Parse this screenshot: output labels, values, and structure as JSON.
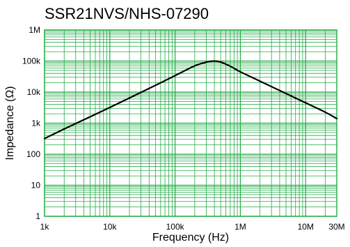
{
  "chart_data": {
    "type": "line",
    "title": "SSR21NVS/NHS-07290",
    "xlabel": "Frequency (Hz)",
    "ylabel": "Impedance (Ω)",
    "x_scale": "log",
    "y_scale": "log",
    "xlim": [
      1000,
      30000000
    ],
    "ylim": [
      1,
      1000000
    ],
    "x_ticks": [
      {
        "value": 1000,
        "label": "1k"
      },
      {
        "value": 10000,
        "label": "10k"
      },
      {
        "value": 100000,
        "label": "100k"
      },
      {
        "value": 1000000,
        "label": "1M"
      },
      {
        "value": 10000000,
        "label": "10M"
      },
      {
        "value": 30000000,
        "label": "30M"
      }
    ],
    "y_ticks": [
      {
        "value": 1,
        "label": "1"
      },
      {
        "value": 10,
        "label": "10"
      },
      {
        "value": 100,
        "label": "100"
      },
      {
        "value": 1000,
        "label": "1k"
      },
      {
        "value": 10000,
        "label": "10k"
      },
      {
        "value": 100000,
        "label": "100k"
      },
      {
        "value": 1000000,
        "label": "1M"
      }
    ],
    "grid": true,
    "grid_color": "#22aa44",
    "line_color": "#000000",
    "series": [
      {
        "x": [
          1000,
          2000,
          5000,
          10000,
          20000,
          50000,
          100000,
          200000,
          300000,
          400000,
          500000,
          700000,
          1000000,
          2000000,
          5000000,
          10000000,
          20000000,
          30000000
        ],
        "y": [
          320,
          650,
          1600,
          3200,
          6500,
          16500,
          34000,
          70000,
          92000,
          100000,
          93000,
          68000,
          45000,
          22500,
          9000,
          4500,
          2250,
          1400
        ]
      }
    ]
  }
}
